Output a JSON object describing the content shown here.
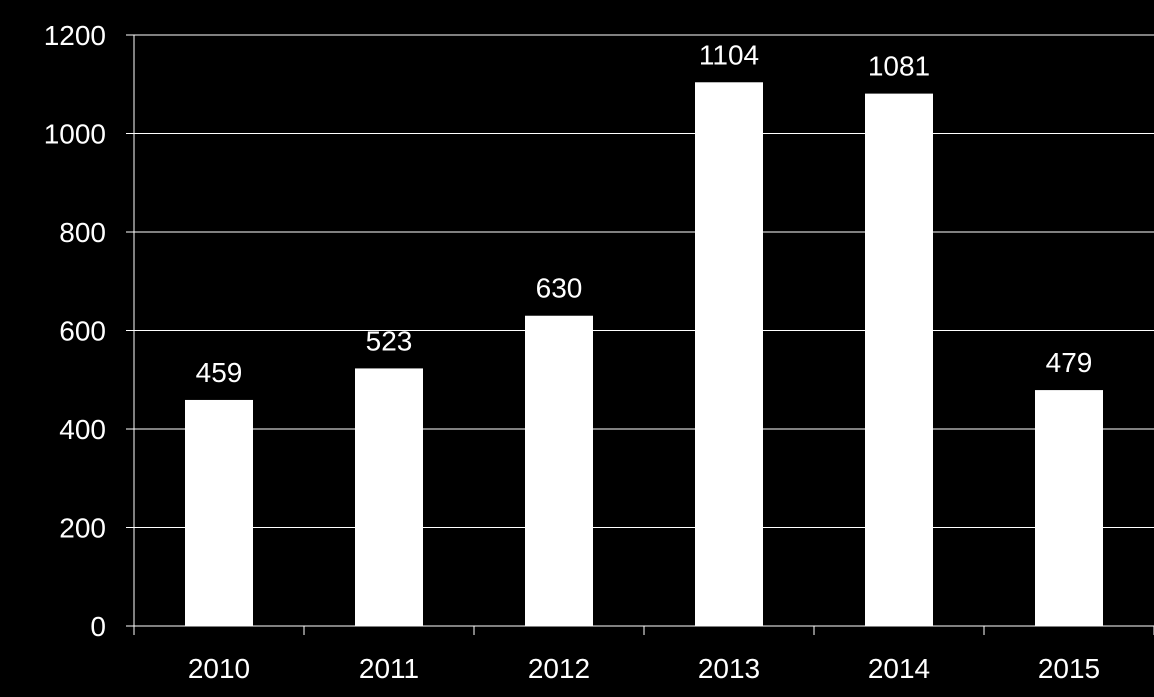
{
  "chart_data": {
    "type": "bar",
    "categories": [
      "2010",
      "2011",
      "2012",
      "2013",
      "2014",
      "2015"
    ],
    "values": [
      459,
      523,
      630,
      1104,
      1081,
      479
    ],
    "data_labels": [
      "459",
      "523",
      "630",
      "1104",
      "1081",
      "479"
    ],
    "ylim": [
      0,
      1200
    ],
    "yticks": [
      "0",
      "200",
      "400",
      "600",
      "800",
      "1000",
      "1200"
    ],
    "title": "",
    "xlabel": "",
    "ylabel": "",
    "grid": true,
    "legend": "none",
    "colors": {
      "background": "#000000",
      "bar": "#ffffff",
      "text": "#ffffff",
      "grid": "#ffffff"
    }
  }
}
